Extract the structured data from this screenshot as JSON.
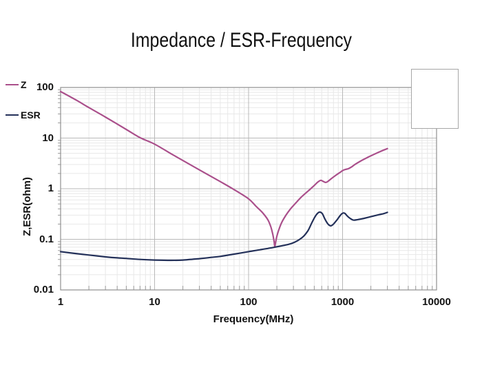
{
  "title": "Impedance / ESR-Frequency",
  "colors": {
    "z_line": "#aa4f8b",
    "esr_line": "#233059",
    "grid_major": "#b8b8b8",
    "grid_minor": "#e8e8e8",
    "frame": "#8f8f8f",
    "tick": "#9a9a9a",
    "text": "#111111"
  },
  "chart_data": {
    "type": "line",
    "title": "Impedance / ESR-Frequency",
    "xlabel": "Frequency(MHz)",
    "ylabel": "Z,ESR(ohm)",
    "xscale": "log",
    "yscale": "log",
    "xlim": [
      1,
      10000
    ],
    "ylim": [
      0.01,
      100
    ],
    "xticks": [
      "1",
      "10",
      "100",
      "1000",
      "10000"
    ],
    "yticks": [
      "100",
      "10",
      "1",
      "0.1",
      "0.01"
    ],
    "grid": "major+minor",
    "legend_position": "top-right",
    "series": [
      {
        "name": "Z",
        "color": "#aa4f8b",
        "points": [
          [
            1,
            83
          ],
          [
            1.5,
            55
          ],
          [
            2,
            40
          ],
          [
            3,
            26
          ],
          [
            5,
            14.8
          ],
          [
            7,
            10.2
          ],
          [
            10,
            7.6
          ],
          [
            15,
            4.9
          ],
          [
            20,
            3.6
          ],
          [
            30,
            2.35
          ],
          [
            50,
            1.38
          ],
          [
            70,
            0.96
          ],
          [
            100,
            0.63
          ],
          [
            120,
            0.45
          ],
          [
            140,
            0.34
          ],
          [
            160,
            0.245
          ],
          [
            172,
            0.18
          ],
          [
            181,
            0.125
          ],
          [
            187,
            0.09
          ],
          [
            190,
            0.072
          ],
          [
            194,
            0.088
          ],
          [
            200,
            0.115
          ],
          [
            210,
            0.155
          ],
          [
            225,
            0.215
          ],
          [
            250,
            0.3
          ],
          [
            280,
            0.4
          ],
          [
            320,
            0.53
          ],
          [
            360,
            0.67
          ],
          [
            400,
            0.8
          ],
          [
            450,
            0.97
          ],
          [
            500,
            1.16
          ],
          [
            545,
            1.35
          ],
          [
            585,
            1.46
          ],
          [
            620,
            1.4
          ],
          [
            660,
            1.33
          ],
          [
            700,
            1.4
          ],
          [
            760,
            1.58
          ],
          [
            850,
            1.85
          ],
          [
            950,
            2.13
          ],
          [
            1000,
            2.28
          ],
          [
            1070,
            2.4
          ],
          [
            1150,
            2.48
          ],
          [
            1250,
            2.7
          ],
          [
            1350,
            3.0
          ],
          [
            1550,
            3.5
          ],
          [
            1800,
            4.05
          ],
          [
            2100,
            4.65
          ],
          [
            2500,
            5.4
          ],
          [
            3000,
            6.2
          ]
        ]
      },
      {
        "name": "ESR",
        "color": "#233059",
        "points": [
          [
            1,
            0.057
          ],
          [
            1.5,
            0.052
          ],
          [
            2,
            0.049
          ],
          [
            3,
            0.045
          ],
          [
            4,
            0.043
          ],
          [
            5,
            0.042
          ],
          [
            7,
            0.04
          ],
          [
            10,
            0.039
          ],
          [
            15,
            0.0385
          ],
          [
            20,
            0.039
          ],
          [
            30,
            0.0415
          ],
          [
            40,
            0.044
          ],
          [
            50,
            0.046
          ],
          [
            70,
            0.051
          ],
          [
            100,
            0.057
          ],
          [
            130,
            0.062
          ],
          [
            160,
            0.066
          ],
          [
            190,
            0.07
          ],
          [
            230,
            0.075
          ],
          [
            270,
            0.08
          ],
          [
            310,
            0.088
          ],
          [
            350,
            0.1
          ],
          [
            390,
            0.118
          ],
          [
            430,
            0.15
          ],
          [
            470,
            0.21
          ],
          [
            510,
            0.28
          ],
          [
            545,
            0.33
          ],
          [
            575,
            0.345
          ],
          [
            610,
            0.32
          ],
          [
            650,
            0.25
          ],
          [
            700,
            0.2
          ],
          [
            750,
            0.185
          ],
          [
            800,
            0.2
          ],
          [
            870,
            0.24
          ],
          [
            950,
            0.3
          ],
          [
            1010,
            0.33
          ],
          [
            1060,
            0.325
          ],
          [
            1120,
            0.29
          ],
          [
            1200,
            0.26
          ],
          [
            1300,
            0.24
          ],
          [
            1450,
            0.245
          ],
          [
            1700,
            0.26
          ],
          [
            2000,
            0.28
          ],
          [
            2400,
            0.305
          ],
          [
            2700,
            0.32
          ],
          [
            3000,
            0.34
          ]
        ]
      }
    ]
  }
}
